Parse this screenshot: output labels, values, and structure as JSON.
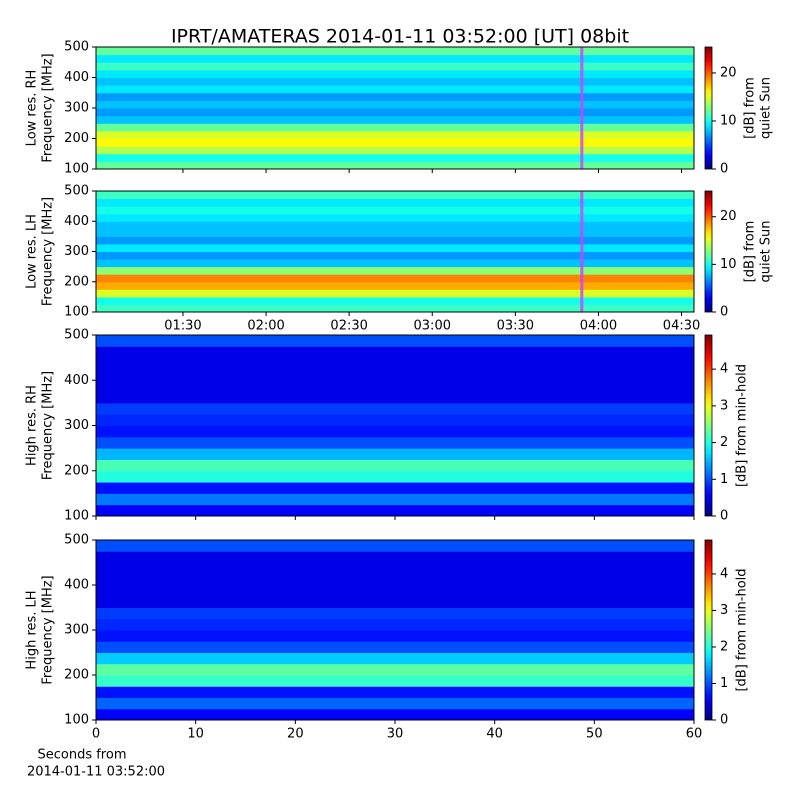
{
  "title": "IPRT/AMATERAS 2014-01-11 03:52:00 [UT]   08bit",
  "chart_data": [
    {
      "type": "heatmap",
      "ylabel": [
        "Low res. RH",
        "Frequency [MHz]"
      ],
      "xlim": [
        58.6,
        274.5
      ],
      "xticks": [
        90,
        120,
        150,
        180,
        210,
        240,
        270
      ],
      "xtick_labels": false,
      "ylim": [
        100,
        500
      ],
      "yticks": [
        100,
        200,
        300,
        400,
        500
      ],
      "colormap": "jet",
      "freq_bins": [
        100,
        125,
        150,
        175,
        200,
        225,
        250,
        275,
        300,
        325,
        350,
        375,
        400,
        425,
        450,
        475,
        500
      ],
      "values": [
        12,
        10,
        14,
        16,
        15,
        12,
        8,
        7,
        8,
        7,
        9,
        8,
        9,
        11,
        9,
        12
      ],
      "colorbar": {
        "label": [
          "[dB] from",
          "quiet Sun"
        ],
        "lim": [
          0,
          25.4
        ],
        "ticks": [
          0,
          10,
          20
        ]
      },
      "markers": [
        234
      ],
      "marker_color": "#cc44ff"
    },
    {
      "type": "heatmap",
      "ylabel": [
        "Low res. LH",
        "Frequency [MHz]"
      ],
      "xlim": [
        58.6,
        274.5
      ],
      "xticks": [
        {
          "value": 90,
          "label": "01:30"
        },
        {
          "value": 120,
          "label": "02:00"
        },
        {
          "value": 150,
          "label": "02:30"
        },
        {
          "value": 180,
          "label": "03:00"
        },
        {
          "value": 210,
          "label": "03:30"
        },
        {
          "value": 240,
          "label": "04:00"
        },
        {
          "value": 270,
          "label": "04:30"
        }
      ],
      "xtick_labels": true,
      "ylim": [
        100,
        500
      ],
      "yticks": [
        100,
        200,
        300,
        400,
        500
      ],
      "colormap": "jet",
      "freq_bins": [
        100,
        125,
        150,
        175,
        200,
        225,
        250,
        275,
        300,
        325,
        350,
        375,
        400,
        425,
        450,
        475,
        500
      ],
      "values": [
        11,
        10,
        15,
        18,
        19,
        13,
        8,
        7,
        9,
        7,
        8,
        8,
        9,
        10,
        9,
        11
      ],
      "colorbar": {
        "label": [
          "[dB] from",
          "quiet Sun"
        ],
        "lim": [
          0,
          25.4
        ],
        "ticks": [
          0,
          10,
          20
        ]
      },
      "markers": [
        234
      ],
      "marker_color": "#cc44ff"
    },
    {
      "type": "heatmap",
      "ylabel": [
        "High res. RH",
        "Frequency [MHz]"
      ],
      "xlim": [
        0,
        60
      ],
      "xticks": [
        0,
        10,
        20,
        30,
        40,
        50,
        60
      ],
      "xtick_labels": false,
      "ylim": [
        100,
        500
      ],
      "yticks": [
        100,
        200,
        300,
        400,
        500
      ],
      "colormap": "jet",
      "freq_bins": [
        100,
        125,
        150,
        175,
        200,
        225,
        250,
        275,
        300,
        325,
        350,
        375,
        400,
        425,
        450,
        475,
        500
      ],
      "values": [
        0.6,
        1.2,
        0.7,
        2.0,
        2.2,
        1.5,
        1.0,
        0.7,
        0.8,
        0.9,
        0.5,
        0.5,
        0.5,
        0.5,
        0.5,
        1.0
      ],
      "colorbar": {
        "label": [
          "[dB] from min-hold"
        ],
        "lim": [
          0,
          4.93
        ],
        "ticks": [
          0,
          1,
          2,
          3,
          4
        ]
      }
    },
    {
      "type": "heatmap",
      "ylabel": [
        "High res. LH",
        "Frequency [MHz]"
      ],
      "xlim": [
        0,
        60
      ],
      "xticks": [
        0,
        10,
        20,
        30,
        40,
        50,
        60
      ],
      "xtick_labels": true,
      "xlabel": [
        "Seconds from",
        "2014-01-11 03:52:00"
      ],
      "ylim": [
        100,
        500
      ],
      "yticks": [
        100,
        200,
        300,
        400,
        500
      ],
      "colormap": "jet",
      "freq_bins": [
        100,
        125,
        150,
        175,
        200,
        225,
        250,
        275,
        300,
        325,
        350,
        375,
        400,
        425,
        450,
        475,
        500
      ],
      "values": [
        0.6,
        1.1,
        0.7,
        2.1,
        2.3,
        1.6,
        1.0,
        0.7,
        0.8,
        0.9,
        0.5,
        0.5,
        0.5,
        0.5,
        0.5,
        1.0
      ],
      "colorbar": {
        "label": [
          "[dB] from min-hold"
        ],
        "lim": [
          0,
          4.93
        ],
        "ticks": [
          0,
          1,
          2,
          3,
          4
        ]
      }
    }
  ]
}
